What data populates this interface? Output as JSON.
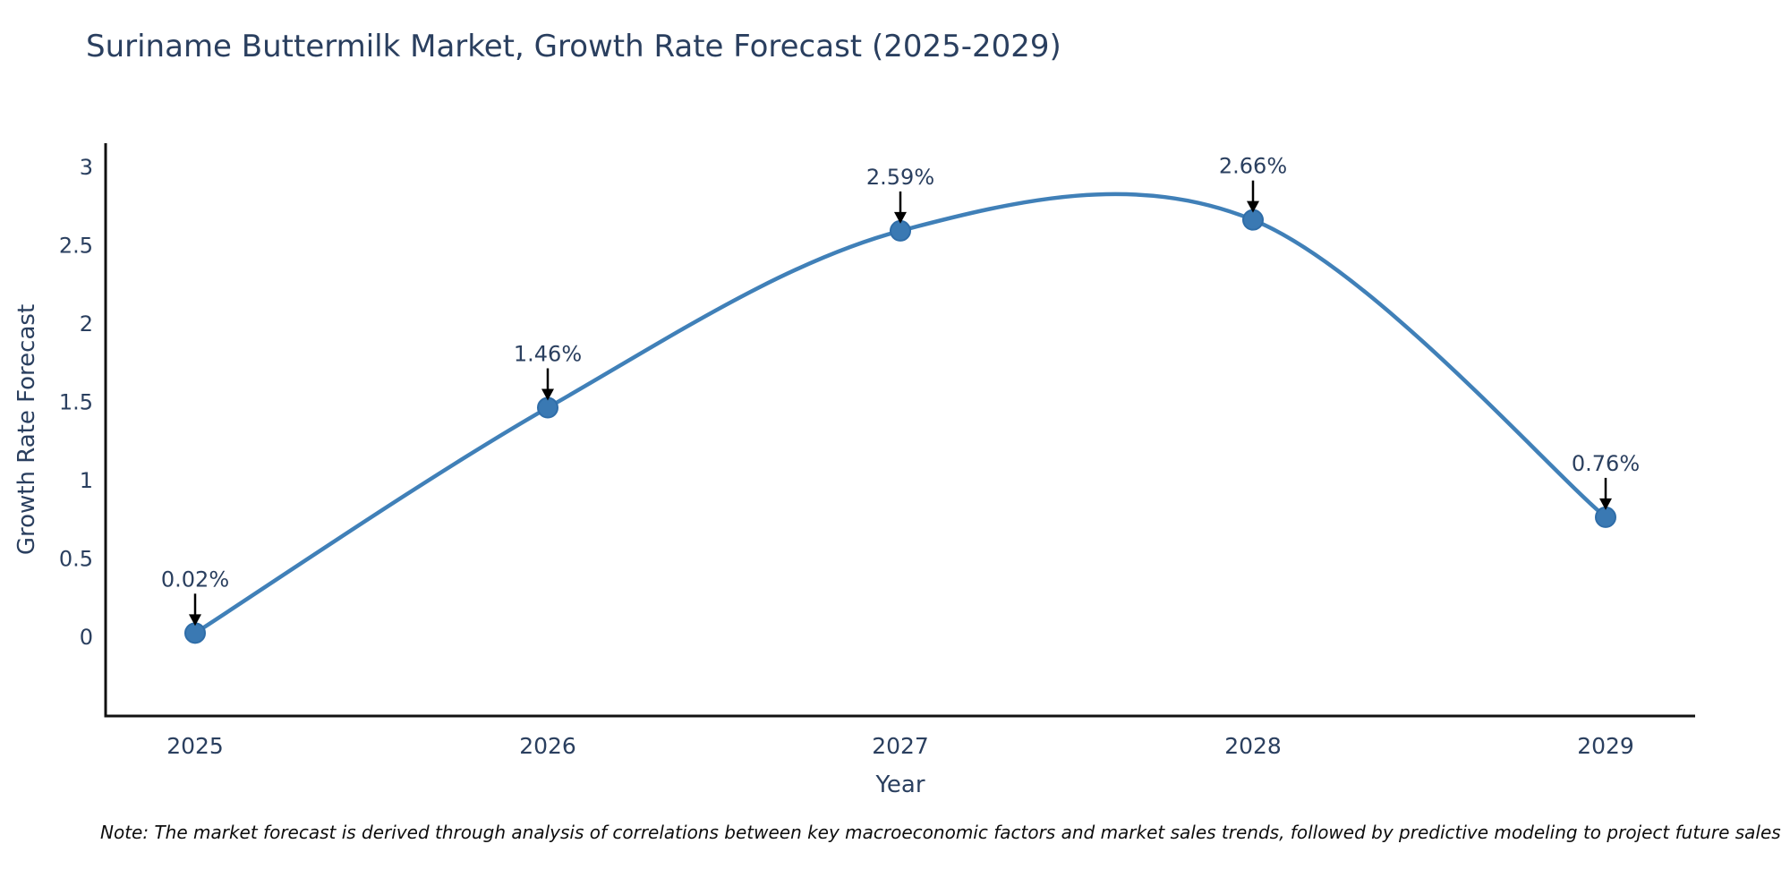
{
  "header": {
    "title": "Suriname Buttermilk Market, Growth Rate Forecast (2025-2029)"
  },
  "chart_data": {
    "type": "line",
    "categories": [
      "2025",
      "2026",
      "2027",
      "2028",
      "2029"
    ],
    "values": [
      0.02,
      1.46,
      2.59,
      2.66,
      0.76
    ],
    "point_labels": [
      "0.02%",
      "1.46%",
      "2.59%",
      "2.66%",
      "0.76%"
    ],
    "title": "Suriname Buttermilk Market, Growth Rate Forecast (2025-2029)",
    "xlabel": "Year",
    "ylabel": "Growth Rate Forecast",
    "yticks": [
      0,
      0.5,
      1,
      1.5,
      2,
      2.5,
      3
    ],
    "ylim": [
      -0.51,
      3.15
    ],
    "grid": false,
    "legend": "none",
    "line_smooth": true,
    "colors": {
      "line": "#4080b8",
      "marker_fill": "#3a79b3",
      "marker_stroke": "#2f6da8",
      "axis": "#111111",
      "text": "#2a3f5f",
      "annotation_arrow": "#000000"
    }
  },
  "note": {
    "text": "Note: The market forecast is derived through analysis of correlations between key macroeconomic factors and market sales trends, followed by predictive modeling to project future sales"
  }
}
